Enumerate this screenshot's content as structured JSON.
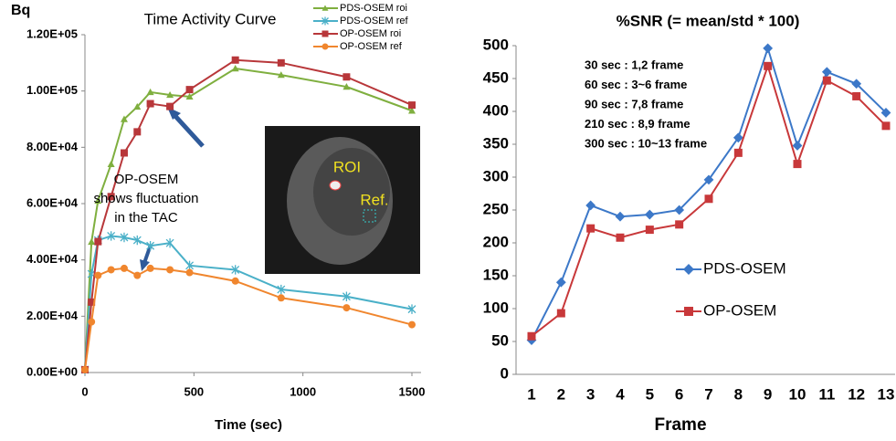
{
  "chart_data": [
    {
      "type": "line",
      "title": "Time Activity Curve",
      "ylabel": "Bq",
      "xlabel": "Time (sec)",
      "x": [
        0,
        30,
        60,
        120,
        180,
        240,
        300,
        390,
        480,
        690,
        900,
        1200,
        1500
      ],
      "series": [
        {
          "name": "PDS-OSEM roi",
          "color": "#7faf3f",
          "marker": "triangle",
          "values": [
            1000,
            46400,
            61000,
            74000,
            90000,
            94400,
            99600,
            98600,
            98000,
            108000,
            105700,
            101500,
            93000
          ]
        },
        {
          "name": "PDS-OSEM ref",
          "color": "#4ab0c8",
          "marker": "star",
          "values": [
            1000,
            35000,
            47000,
            48500,
            48000,
            47000,
            45000,
            46000,
            38000,
            36500,
            29500,
            27000,
            22500
          ]
        },
        {
          "name": "OP-OSEM roi",
          "color": "#b8373a",
          "marker": "square",
          "values": [
            1000,
            25000,
            46500,
            62500,
            78000,
            85500,
            95500,
            94500,
            100500,
            111000,
            110000,
            105000,
            95000
          ]
        },
        {
          "name": "OP-OSEM ref",
          "color": "#f0862e",
          "marker": "circle",
          "values": [
            1000,
            18000,
            34500,
            36500,
            37000,
            34500,
            37000,
            36500,
            35500,
            32500,
            26500,
            23000,
            17000
          ]
        }
      ],
      "xlim": [
        0,
        1500
      ],
      "xticks": [
        0,
        500,
        1000,
        1500
      ],
      "ylim": [
        0,
        120000
      ],
      "yticks": [
        {
          "value": 0,
          "label": "0.00E+00"
        },
        {
          "value": 20000,
          "label": "2.00E+04"
        },
        {
          "value": 40000,
          "label": "4.00E+04"
        },
        {
          "value": 60000,
          "label": "6.00E+04"
        },
        {
          "value": 80000,
          "label": "8.00E+04"
        },
        {
          "value": 100000,
          "label": "1.00E+05"
        },
        {
          "value": 120000,
          "label": "1.20E+05"
        }
      ],
      "grid": false,
      "legend": "top-right",
      "annotation": [
        "OP-OSEM",
        "shows fluctuation",
        "in the TAC"
      ],
      "inset_labels": [
        "ROI",
        "Ref."
      ]
    },
    {
      "type": "line",
      "title": "%SNR (= mean/std * 100)",
      "xlabel": "Frame",
      "categories": [
        "1",
        "2",
        "3",
        "4",
        "5",
        "6",
        "7",
        "8",
        "9",
        "10",
        "11",
        "12",
        "13"
      ],
      "series": [
        {
          "name": "PDS-OSEM",
          "color": "#3c78c8",
          "marker": "diamond",
          "values": [
            52,
            140,
            257,
            240,
            243,
            250,
            296,
            360,
            496,
            348,
            460,
            442,
            398
          ]
        },
        {
          "name": "OP-OSEM",
          "color": "#c8383a",
          "marker": "square",
          "values": [
            58,
            93,
            222,
            208,
            220,
            228,
            267,
            337,
            469,
            320,
            447,
            423,
            378
          ]
        }
      ],
      "ylim": [
        0,
        500
      ],
      "yticks": [
        0,
        50,
        100,
        150,
        200,
        250,
        300,
        350,
        400,
        450,
        500
      ],
      "grid": false,
      "legend": "middle",
      "annotation": [
        "30 sec : 1,2 frame",
        "60 sec : 3~6 frame",
        "90 sec : 7,8 frame",
        "210 sec : 8,9 frame",
        "300 sec : 10~13 frame"
      ]
    }
  ]
}
